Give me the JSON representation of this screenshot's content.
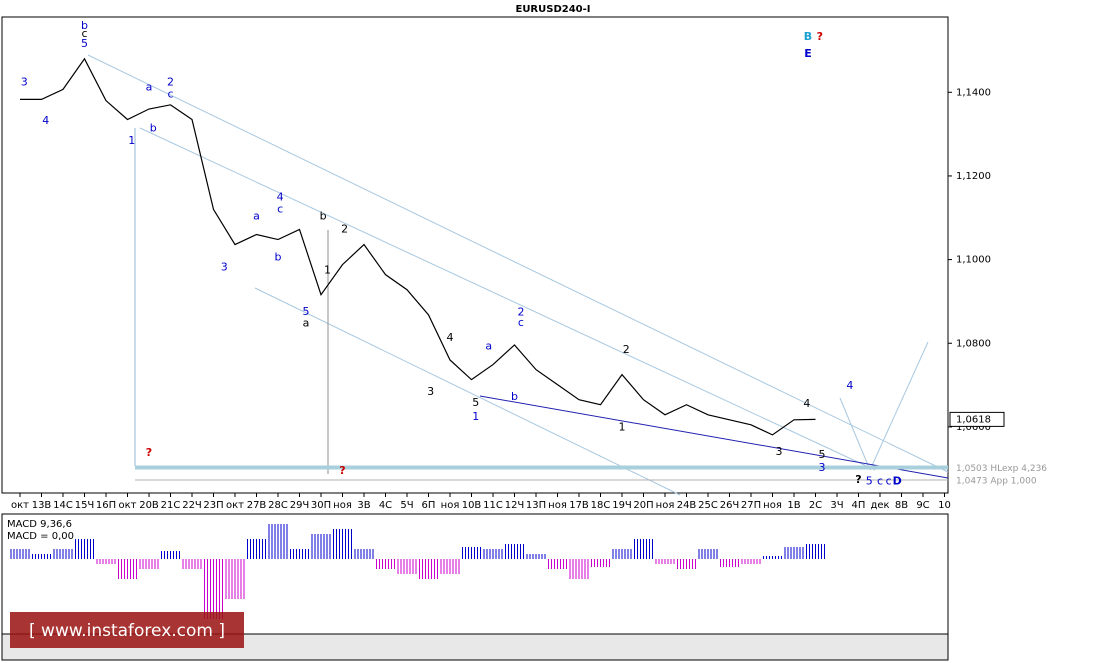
{
  "chart_data": [
    {
      "type": "line",
      "title": "EURUSD240-I",
      "color": "#000000",
      "categories": [
        "окт",
        "13В",
        "14С",
        "15Ч",
        "16П",
        "окт",
        "20В",
        "21С",
        "22Ч",
        "23П",
        "окт",
        "27В",
        "28С",
        "29Ч",
        "30П",
        "ноя",
        "3В",
        "4С",
        "5Ч",
        "6П",
        "ноя",
        "10В",
        "11С",
        "12Ч",
        "13П",
        "ноя",
        "17В",
        "18С",
        "19Ч",
        "20П",
        "ноя",
        "24В",
        "25С",
        "26Ч",
        "27П",
        "ноя",
        "1В",
        "2С",
        "3Ч",
        "4П",
        "дек",
        "8В",
        "9С",
        "10"
      ],
      "values": [
        1.1383,
        1.1383,
        1.1407,
        1.148,
        1.138,
        1.1335,
        1.136,
        1.137,
        1.1335,
        1.112,
        1.1036,
        1.106,
        1.1048,
        1.1072,
        1.0916,
        1.0988,
        1.1036,
        1.0964,
        1.0928,
        1.0868,
        1.076,
        1.0713,
        1.0749,
        1.0796,
        1.0737,
        1.0701,
        1.0665,
        1.0653,
        1.0725,
        1.0665,
        1.0629,
        1.0653,
        1.0629,
        1.0617,
        1.0605,
        1.0581,
        1.0617,
        1.0618,
        null,
        null,
        null,
        null,
        null,
        null
      ],
      "ylim": [
        1.0442,
        1.158
      ],
      "yticks": [
        {
          "value": 1.06,
          "label": "1,0600"
        },
        {
          "value": 1.08,
          "label": "1,0800"
        },
        {
          "value": 1.1,
          "label": "1,1000"
        },
        {
          "value": 1.12,
          "label": "1,1200"
        },
        {
          "value": 1.14,
          "label": "1,1400"
        }
      ],
      "last_label": {
        "value": 1.0618,
        "label": "1,0618"
      },
      "levels": [
        {
          "value": 1.0503,
          "label": "1,0503 HLexp 4,236",
          "color": "#a8d0dc"
        },
        {
          "value": 1.0473,
          "label": "1,0473 App 1,000",
          "color": "#b0b0b0"
        }
      ],
      "annotations": [
        {
          "text": "b",
          "x": 3,
          "y": 1.1558,
          "color": "#0000cc"
        },
        {
          "text": "c",
          "x": 3,
          "y": 1.1539,
          "color": "#000000"
        },
        {
          "text": "5",
          "x": 3,
          "y": 1.1515,
          "color": "#0000cc"
        },
        {
          "text": "3",
          "x": 0.2,
          "y": 1.1424,
          "color": "#0000cc"
        },
        {
          "text": "4",
          "x": 1.2,
          "y": 1.1331,
          "color": "#0000cc"
        },
        {
          "text": "a",
          "x": 6,
          "y": 1.1412,
          "color": "#0000cc"
        },
        {
          "text": "b",
          "x": 6.2,
          "y": 1.1314,
          "color": "#0000cc"
        },
        {
          "text": "2",
          "x": 7,
          "y": 1.1424,
          "color": "#0000cc"
        },
        {
          "text": "c",
          "x": 7,
          "y": 1.1395,
          "color": "#0000cc"
        },
        {
          "text": "1",
          "x": 5.2,
          "y": 1.1283,
          "color": "#0000cc"
        },
        {
          "text": "4",
          "x": 12.1,
          "y": 1.1149,
          "color": "#0000cc"
        },
        {
          "text": "c",
          "x": 12.1,
          "y": 1.112,
          "color": "#0000cc"
        },
        {
          "text": "a",
          "x": 11,
          "y": 1.1103,
          "color": "#0000cc"
        },
        {
          "text": "3",
          "x": 9.5,
          "y": 1.0981,
          "color": "#0000cc"
        },
        {
          "text": "b",
          "x": 12,
          "y": 1.1005,
          "color": "#0000cc"
        },
        {
          "text": "5",
          "x": 13.3,
          "y": 1.0875,
          "color": "#0000cc"
        },
        {
          "text": "a",
          "x": 13.3,
          "y": 1.0847,
          "color": "#000000"
        },
        {
          "text": "b",
          "x": 14.1,
          "y": 1.1103,
          "color": "#000000"
        },
        {
          "text": "2",
          "x": 15.1,
          "y": 1.1072,
          "color": "#000000"
        },
        {
          "text": "1",
          "x": 14.3,
          "y": 1.0974,
          "color": "#000000"
        },
        {
          "text": "3",
          "x": 19.1,
          "y": 1.0684,
          "color": "#000000"
        },
        {
          "text": "4",
          "x": 20,
          "y": 1.0813,
          "color": "#000000"
        },
        {
          "text": "a",
          "x": 21.8,
          "y": 1.0792,
          "color": "#0000cc"
        },
        {
          "text": "b",
          "x": 23,
          "y": 1.0672,
          "color": "#0000cc"
        },
        {
          "text": "5",
          "x": 21.2,
          "y": 1.0657,
          "color": "#000000"
        },
        {
          "text": "1",
          "x": 21.2,
          "y": 1.0624,
          "color": "#0000cc"
        },
        {
          "text": "2",
          "x": 23.3,
          "y": 1.0873,
          "color": "#0000cc"
        },
        {
          "text": "c",
          "x": 23.3,
          "y": 1.0849,
          "color": "#0000cc"
        },
        {
          "text": "1",
          "x": 28,
          "y": 1.0598,
          "color": "#000000"
        },
        {
          "text": "2",
          "x": 28.2,
          "y": 1.0784,
          "color": "#000000"
        },
        {
          "text": "3",
          "x": 35.3,
          "y": 1.054,
          "color": "#000000"
        },
        {
          "text": "4",
          "x": 36.6,
          "y": 1.0655,
          "color": "#000000"
        },
        {
          "text": "5",
          "x": 37.3,
          "y": 1.0533,
          "color": "#000000"
        },
        {
          "text": "3",
          "x": 37.3,
          "y": 1.0502,
          "color": "#0000cc"
        },
        {
          "text": "4",
          "x": 38.6,
          "y": 1.0698,
          "color": "#0000cc"
        },
        {
          "text": "?",
          "x": 39,
          "y": 1.0473,
          "color": "#000000"
        },
        {
          "text": "5",
          "x": 39.5,
          "y": 1.047,
          "color": "#0000cc"
        },
        {
          "text": "c",
          "x": 40,
          "y": 1.047,
          "color": "#0000cc"
        },
        {
          "text": "c",
          "x": 40.4,
          "y": 1.047,
          "color": "#0000cc"
        },
        {
          "text": "D",
          "x": 40.8,
          "y": 1.047,
          "color": "#0000cc"
        },
        {
          "text": "?",
          "x": 6,
          "y": 1.0538,
          "color": "#cc0000"
        },
        {
          "text": "?",
          "x": 15,
          "y": 1.0495,
          "color": "#cc0000"
        },
        {
          "text": "B",
          "x": 36.65,
          "y": 1.1532,
          "color": "#1aa0d0"
        },
        {
          "text": "?",
          "x": 37.2,
          "y": 1.1532,
          "color": "#cc0000"
        },
        {
          "text": "E",
          "x": 36.65,
          "y": 1.1491,
          "color": "#0000cc"
        }
      ]
    },
    {
      "type": "bar",
      "title": "MACD 9,36,6",
      "subtitle": "MACD = 0,00",
      "pos_color": "#0000cc",
      "neg_color": "#cc00cc",
      "values": [
        0.001,
        0.0005,
        0.001,
        0.002,
        -0.0005,
        -0.002,
        -0.001,
        0.0008,
        -0.001,
        -0.006,
        -0.004,
        0.002,
        0.0035,
        0.001,
        0.0025,
        0.003,
        0.001,
        -0.001,
        -0.0015,
        -0.002,
        -0.0015,
        0.0012,
        0.001,
        0.0015,
        0.0005,
        -0.001,
        -0.002,
        -0.0008,
        0.001,
        0.002,
        -0.0005,
        -0.001,
        0.001,
        -0.0008,
        -0.0005,
        0.0003,
        0.0012,
        0.0015
      ],
      "ylim": [
        -0.0075,
        0.0045
      ]
    }
  ],
  "watermark": "[ www.instaforex.com ]"
}
